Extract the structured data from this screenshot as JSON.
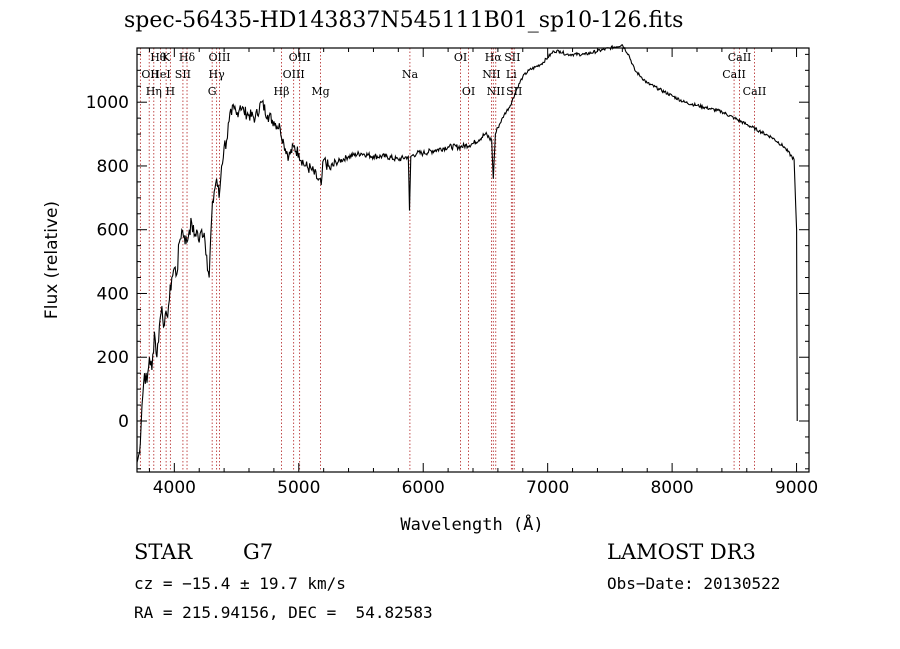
{
  "chart_data": {
    "type": "line",
    "title": "spec-56435-HD143837N545111B01_sp10-126.fits",
    "xlabel": "Wavelength (Å)",
    "ylabel": "Flux (relative)",
    "xlim": [
      3700,
      9100
    ],
    "ylim": [
      -160,
      1170
    ],
    "xticks": [
      4000,
      5000,
      6000,
      7000,
      8000,
      9000
    ],
    "yticks": [
      0,
      200,
      400,
      600,
      800,
      1000
    ],
    "grid": false,
    "series": [
      {
        "x": [
          3700,
          3720,
          3740,
          3760,
          3780,
          3800,
          3820,
          3840,
          3860,
          3880,
          3900,
          3920,
          3940,
          3960,
          3980,
          4000,
          4020,
          4040,
          4060,
          4080,
          4100,
          4120,
          4140,
          4160,
          4180,
          4200,
          4220,
          4240,
          4260,
          4280,
          4300,
          4320,
          4340,
          4360,
          4380,
          4400,
          4420,
          4440,
          4460,
          4480,
          4500,
          4530,
          4560,
          4600,
          4650,
          4700,
          4750,
          4800,
          4850,
          4880,
          4920,
          4960,
          5000,
          5050,
          5100,
          5150,
          5180,
          5200,
          5250,
          5300,
          5400,
          5500,
          5600,
          5700,
          5800,
          5880,
          5890,
          5900,
          5950,
          6000,
          6100,
          6200,
          6300,
          6400,
          6500,
          6550,
          6563,
          6580,
          6600,
          6650,
          6700,
          6750,
          6800,
          6850,
          6900,
          6950,
          7000,
          7050,
          7100,
          7150,
          7200,
          7300,
          7400,
          7500,
          7600,
          7650,
          7700,
          7750,
          7800,
          7900,
          8000,
          8100,
          8200,
          8300,
          8400,
          8500,
          8600,
          8700,
          8800,
          8900,
          8980,
          9000,
          9005
        ],
        "y": [
          -130,
          -100,
          50,
          150,
          120,
          200,
          160,
          280,
          200,
          300,
          360,
          300,
          330,
          380,
          450,
          480,
          460,
          560,
          600,
          580,
          560,
          600,
          620,
          580,
          600,
          560,
          600,
          590,
          520,
          450,
          640,
          720,
          760,
          700,
          800,
          860,
          880,
          940,
          960,
          980,
          960,
          990,
          970,
          960,
          950,
          1000,
          960,
          940,
          920,
          870,
          830,
          860,
          840,
          800,
          790,
          760,
          740,
          820,
          790,
          810,
          830,
          840,
          830,
          830,
          820,
          830,
          660,
          830,
          840,
          840,
          850,
          860,
          860,
          870,
          900,
          880,
          760,
          900,
          920,
          960,
          990,
          1040,
          1080,
          1100,
          1110,
          1120,
          1140,
          1160,
          1160,
          1150,
          1150,
          1150,
          1160,
          1170,
          1180,
          1150,
          1100,
          1080,
          1060,
          1040,
          1020,
          1000,
          990,
          980,
          970,
          950,
          930,
          910,
          890,
          860,
          820,
          600,
          0
        ]
      }
    ],
    "line_markers": [
      {
        "label": "Hθ",
        "wl": 3798,
        "row": 1,
        "side": "right"
      },
      {
        "label": "OII",
        "wl": 3727,
        "row": 2,
        "side": "right"
      },
      {
        "label": "Hη",
        "wl": 3835,
        "row": 3,
        "side": "left"
      },
      {
        "label": "K",
        "wl": 3934,
        "row": 1,
        "side": "left"
      },
      {
        "label": "HeI",
        "wl": 3889,
        "row": 2,
        "side": "left"
      },
      {
        "label": "SII",
        "wl": 4069,
        "row": 2,
        "side": "left"
      },
      {
        "label": "H",
        "wl": 3968,
        "row": 3,
        "side": "left"
      },
      {
        "label": "Hδ",
        "wl": 4102,
        "row": 1,
        "side": "left"
      },
      {
        "label": "OIII",
        "wl": 4363,
        "row": 1,
        "side": "left"
      },
      {
        "label": "Hγ",
        "wl": 4340,
        "row": 2,
        "side": "left"
      },
      {
        "label": "G",
        "wl": 4304,
        "row": 3,
        "side": "left"
      },
      {
        "label": "OIII",
        "wl": 5007,
        "row": 1,
        "side": "left"
      },
      {
        "label": "OIII",
        "wl": 4959,
        "row": 2,
        "side": "left"
      },
      {
        "label": "Hβ",
        "wl": 4861,
        "row": 3,
        "side": "left"
      },
      {
        "label": "Mg",
        "wl": 5175,
        "row": 3,
        "side": "left"
      },
      {
        "label": "Na",
        "wl": 5893,
        "row": 2,
        "side": "left"
      },
      {
        "label": "OI",
        "wl": 6300,
        "row": 1,
        "side": "left"
      },
      {
        "label": "OI",
        "wl": 6364,
        "row": 3,
        "side": "left"
      },
      {
        "label": "Hα",
        "wl": 6563,
        "row": 1,
        "side": "left"
      },
      {
        "label": "SII",
        "wl": 6716,
        "row": 1,
        "side": "left"
      },
      {
        "label": "NII",
        "wl": 6548,
        "row": 2,
        "side": "left"
      },
      {
        "label": "Li",
        "wl": 6708,
        "row": 2,
        "side": "left"
      },
      {
        "label": "NII",
        "wl": 6583,
        "row": 3,
        "side": "left"
      },
      {
        "label": "SII",
        "wl": 6731,
        "row": 3,
        "side": "left"
      },
      {
        "label": "CaII",
        "wl": 8542,
        "row": 1,
        "side": "left"
      },
      {
        "label": "CaII",
        "wl": 8498,
        "row": 2,
        "side": "left"
      },
      {
        "label": "CaII",
        "wl": 8662,
        "row": 3,
        "side": "left"
      }
    ]
  },
  "info": {
    "object_class": "STAR",
    "subclass": "G7",
    "survey": "LAMOST DR3",
    "redshift_text": "cz = −15.4 ± 19.7 km/s",
    "obs_date_text": "Obs−Date: 20130522",
    "coords_text": "RA = 215.94156, DEC =  54.82583"
  }
}
